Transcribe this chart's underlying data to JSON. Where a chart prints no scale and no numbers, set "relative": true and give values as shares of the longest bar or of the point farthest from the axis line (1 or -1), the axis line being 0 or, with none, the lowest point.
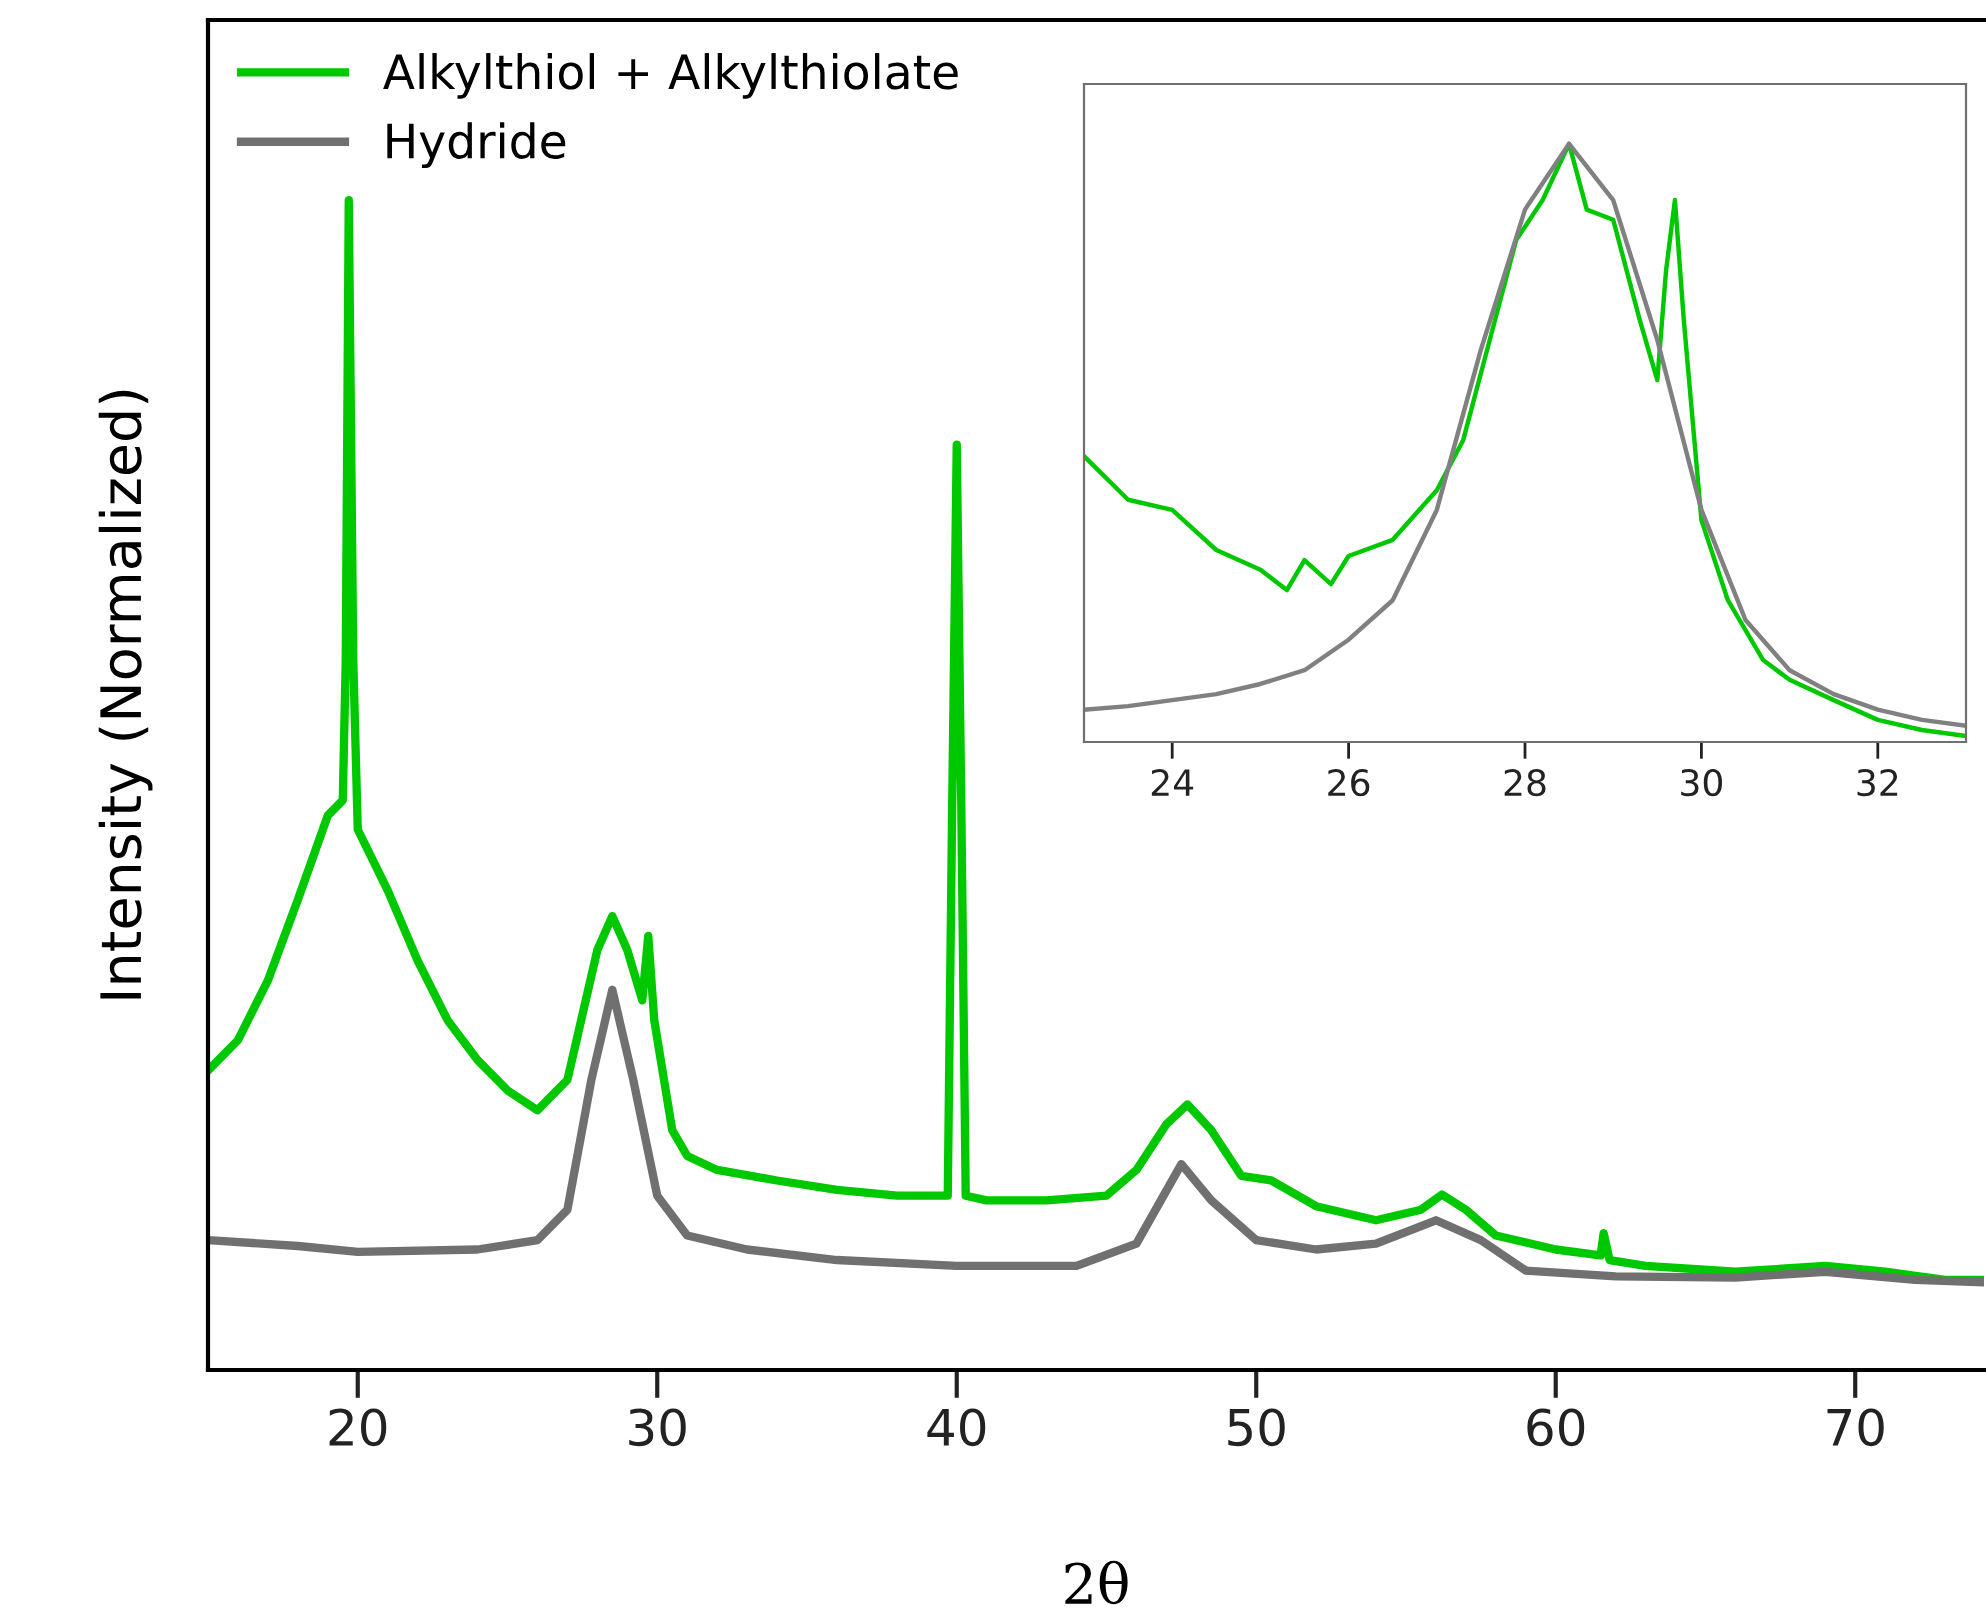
{
  "chart_data": [
    {
      "type": "line",
      "xlabel": "2θ",
      "ylabel": "Intensity (Normalized)",
      "relative": true,
      "xlim": [
        15,
        74.3
      ],
      "xticks": [
        20,
        30,
        40,
        50,
        60,
        70
      ],
      "tick_labels": "x",
      "legend": "top left",
      "grid": false,
      "series": [
        {
          "name": "Alkylthiol + Alkylthiolate",
          "color": "#00c800",
          "x": [
            15,
            16,
            17,
            18,
            19,
            19.5,
            19.6,
            19.7,
            19.85,
            20,
            21,
            22,
            23,
            24,
            25,
            26,
            27,
            28,
            28.5,
            29,
            29.5,
            29.7,
            29.9,
            30.5,
            31,
            32,
            34,
            36,
            38,
            39.7,
            39.85,
            40,
            40.15,
            40.3,
            41,
            43,
            45,
            46,
            47,
            47.7,
            48.5,
            49.5,
            50.5,
            52,
            54,
            55.5,
            56.2,
            57,
            58,
            60,
            61.5,
            61.6,
            61.8,
            63,
            66,
            69,
            71,
            73,
            74.3
          ],
          "values": [
            0.256,
            0.282,
            0.333,
            0.402,
            0.474,
            0.487,
            0.607,
            1.0,
            0.607,
            0.462,
            0.41,
            0.35,
            0.299,
            0.265,
            0.239,
            0.222,
            0.248,
            0.359,
            0.388,
            0.359,
            0.316,
            0.371,
            0.299,
            0.205,
            0.183,
            0.171,
            0.162,
            0.154,
            0.149,
            0.149,
            0.487,
            0.791,
            0.487,
            0.149,
            0.145,
            0.145,
            0.149,
            0.171,
            0.21,
            0.227,
            0.205,
            0.166,
            0.162,
            0.14,
            0.128,
            0.137,
            0.15,
            0.137,
            0.115,
            0.103,
            0.098,
            0.117,
            0.094,
            0.089,
            0.084,
            0.089,
            0.084,
            0.077,
            0.077
          ]
        },
        {
          "name": "Hydride",
          "color": "#707070",
          "x": [
            15,
            18,
            20,
            24,
            26,
            27,
            27.8,
            28.5,
            29.2,
            30,
            31,
            33,
            36,
            40,
            44,
            46,
            47.5,
            48.5,
            50,
            52,
            54,
            56,
            57.5,
            59,
            62,
            66,
            69,
            72,
            74.3
          ],
          "values": [
            0.111,
            0.106,
            0.101,
            0.103,
            0.111,
            0.137,
            0.248,
            0.325,
            0.248,
            0.149,
            0.115,
            0.103,
            0.094,
            0.089,
            0.089,
            0.108,
            0.176,
            0.145,
            0.111,
            0.103,
            0.108,
            0.128,
            0.111,
            0.085,
            0.08,
            0.079,
            0.084,
            0.077,
            0.075
          ]
        }
      ]
    },
    {
      "type": "line",
      "relative": true,
      "xlim": [
        23,
        33
      ],
      "xticks": [
        24,
        26,
        28,
        30,
        32
      ],
      "tick_labels": "x",
      "grid": false,
      "series": [
        {
          "color": "#00c800",
          "x": [
            23,
            23.5,
            24,
            24.5,
            25,
            25.3,
            25.5,
            25.8,
            26,
            26.5,
            27,
            27.3,
            27.6,
            27.9,
            28.2,
            28.5,
            28.7,
            29,
            29.3,
            29.5,
            29.6,
            29.7,
            29.8,
            30,
            30.3,
            30.7,
            31,
            31.5,
            32,
            32.5,
            33
          ],
          "values": [
            0.478,
            0.405,
            0.388,
            0.321,
            0.288,
            0.254,
            0.304,
            0.264,
            0.311,
            0.338,
            0.421,
            0.505,
            0.672,
            0.839,
            0.906,
            1.0,
            0.89,
            0.873,
            0.706,
            0.605,
            0.789,
            0.906,
            0.706,
            0.371,
            0.237,
            0.137,
            0.104,
            0.07,
            0.037,
            0.02,
            0.01
          ]
        },
        {
          "color": "#808080",
          "x": [
            23,
            23.5,
            24,
            24.5,
            25,
            25.5,
            26,
            26.5,
            27,
            27.5,
            28,
            28.5,
            29,
            29.5,
            30,
            30.5,
            31,
            31.5,
            32,
            32.5,
            33
          ],
          "values": [
            0.054,
            0.06,
            0.07,
            0.08,
            0.097,
            0.12,
            0.171,
            0.237,
            0.388,
            0.656,
            0.89,
            1.0,
            0.906,
            0.672,
            0.388,
            0.204,
            0.12,
            0.08,
            0.054,
            0.037,
            0.027
          ]
        }
      ]
    }
  ]
}
